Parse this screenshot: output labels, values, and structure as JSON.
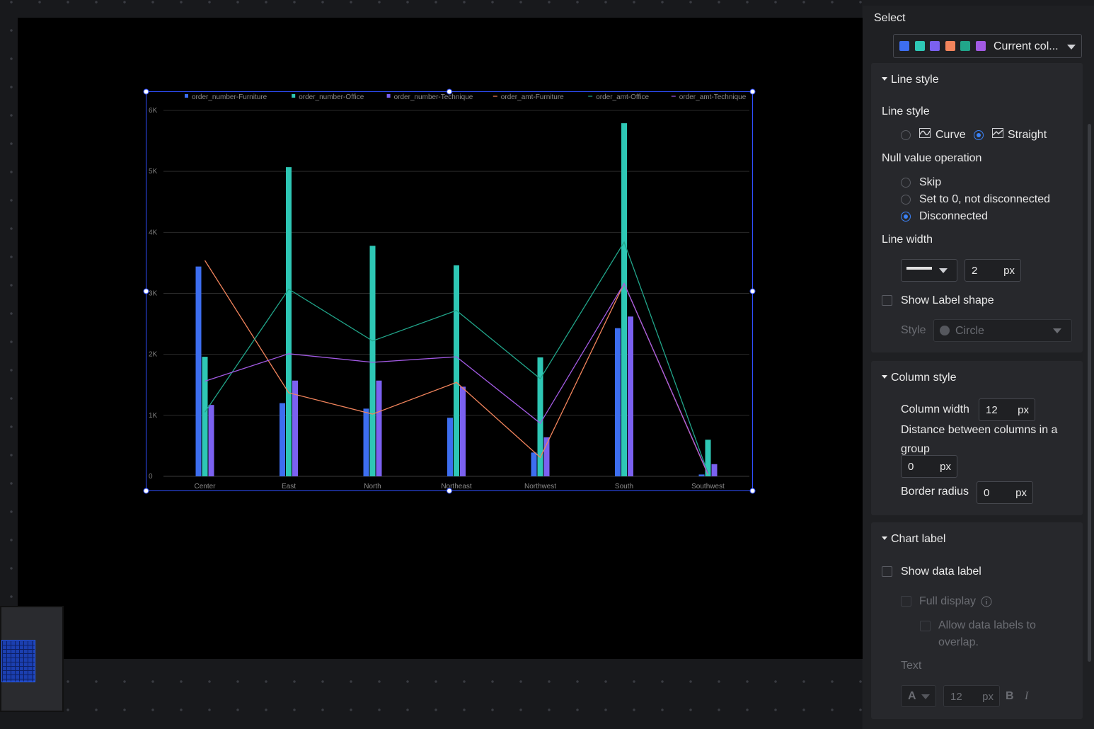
{
  "panel": {
    "select_label": "Select",
    "color_scheme": {
      "swatches": [
        "#3d6ef0",
        "#2ec7b5",
        "#7b61f0",
        "#f2845c",
        "#21a58a",
        "#a25ae3"
      ],
      "value": "Current col..."
    },
    "line_style": {
      "section_title": "Line style",
      "label": "Line style",
      "options": [
        {
          "label": "Curve",
          "selected": false
        },
        {
          "label": "Straight",
          "selected": true
        }
      ],
      "null_label": "Null value operation",
      "null_options": [
        {
          "label": "Skip",
          "selected": false
        },
        {
          "label": "Set to 0, not disconnected",
          "selected": false
        },
        {
          "label": "Disconnected",
          "selected": true
        }
      ],
      "line_width_label": "Line width",
      "line_width_value": "2",
      "unit": "px",
      "show_label_shape": "Show Label shape",
      "style_label": "Style",
      "style_value": "Circle"
    },
    "column_style": {
      "section_title": "Column style",
      "column_width_label": "Column width",
      "column_width_value": "12",
      "distance_label_1": "Distance between columns in a",
      "distance_label_2": "group",
      "distance_value": "0",
      "border_radius_label": "Border radius",
      "border_radius_value": "0",
      "unit": "px"
    },
    "chart_label": {
      "section_title": "Chart label",
      "show_data_label": "Show data label",
      "full_display": "Full display",
      "allow_overlap_1": "Allow data labels to",
      "allow_overlap_2": "overlap.",
      "text_label": "Text",
      "font_glyph": "A",
      "font_size": "12",
      "unit": "px",
      "bold": "B",
      "italic": "I"
    }
  },
  "chart_data": {
    "type": "bar",
    "categories": [
      "Center",
      "East",
      "North",
      "Northeast",
      "Northwest",
      "South",
      "Southwest"
    ],
    "yticks": [
      "0",
      "1K",
      "2K",
      "3K",
      "4K",
      "5K",
      "6K"
    ],
    "ylim": [
      0,
      6000
    ],
    "grid": true,
    "legend_position": "top",
    "bar_series": [
      {
        "name": "order_number-Furniture",
        "color": "#3d6ef0",
        "values": [
          3440,
          1200,
          1110,
          960,
          390,
          2430,
          30
        ]
      },
      {
        "name": "order_number-Office",
        "color": "#2ec7b5",
        "values": [
          1960,
          5070,
          3780,
          3460,
          1950,
          5790,
          600
        ]
      },
      {
        "name": "order_number-Technique",
        "color": "#7b61f0",
        "values": [
          1170,
          1570,
          1570,
          1470,
          640,
          2620,
          200
        ]
      }
    ],
    "line_series": [
      {
        "name": "order_amt-Furniture",
        "color": "#f2845c",
        "values": [
          3540,
          1370,
          1020,
          1540,
          310,
          3160,
          30
        ]
      },
      {
        "name": "order_amt-Office",
        "color": "#21a58a",
        "values": [
          1050,
          3070,
          2220,
          2720,
          1600,
          3840,
          50
        ]
      },
      {
        "name": "order_amt-Technique",
        "color": "#a25ae3",
        "values": [
          1560,
          2010,
          1870,
          1960,
          870,
          3160,
          40
        ]
      }
    ]
  }
}
